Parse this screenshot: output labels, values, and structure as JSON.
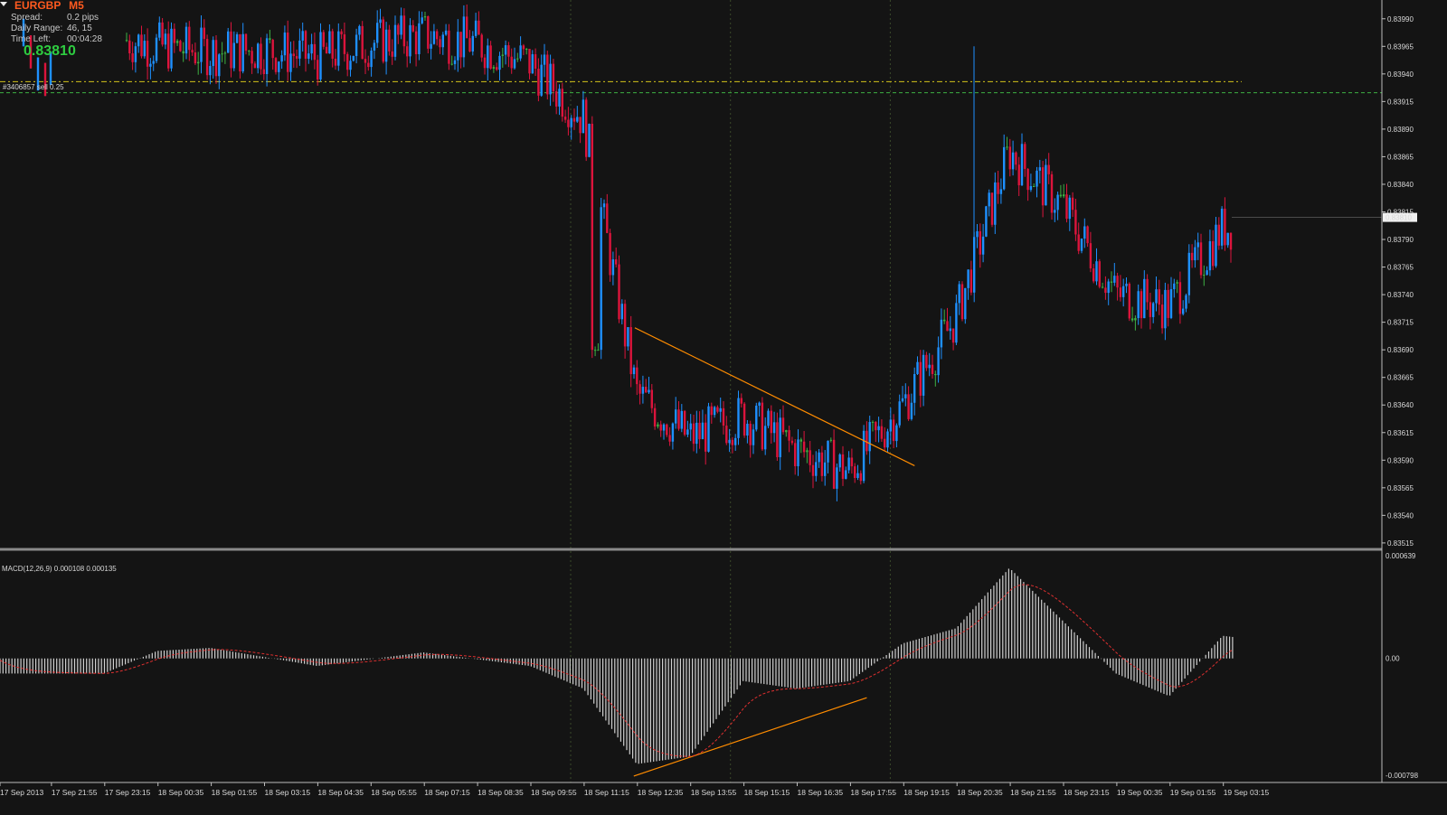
{
  "header": {
    "symbol": "EURGBP",
    "timeframe": "M5",
    "spread_label": "Spread:",
    "spread_value": "0.2 pips",
    "range_label": "Daily Range:",
    "range_value": "46, 15",
    "timeleft_label": "Time Left:",
    "timeleft_value": "00:04:28",
    "bid_price": "0.83810"
  },
  "order_line": {
    "label": "#3406857 sell 0.25"
  },
  "indicator": {
    "label": "MACD(12,26,9) 0.000108 0.000135"
  },
  "price_axis": {
    "ticks": [
      "0.83990",
      "0.83965",
      "0.83940",
      "0.83915",
      "0.83890",
      "0.83865",
      "0.83840",
      "0.83815",
      "0.83790",
      "0.83765",
      "0.83740",
      "0.83715",
      "0.83690",
      "0.83665",
      "0.83640",
      "0.83615",
      "0.83590",
      "0.83565",
      "0.83540",
      "0.83515"
    ],
    "current": "0.83810"
  },
  "macd_axis": {
    "ticks": [
      "0.000639",
      "0.00",
      "-0.000798"
    ]
  },
  "time_axis": {
    "labels": [
      "17 Sep 2013",
      "17 Sep 21:55",
      "17 Sep 23:15",
      "18 Sep 00:35",
      "18 Sep 01:55",
      "18 Sep 03:15",
      "18 Sep 04:35",
      "18 Sep 05:55",
      "18 Sep 07:15",
      "18 Sep 08:35",
      "18 Sep 09:55",
      "18 Sep 11:15",
      "18 Sep 12:35",
      "18 Sep 13:55",
      "18 Sep 15:15",
      "18 Sep 16:35",
      "18 Sep 17:55",
      "18 Sep 19:15",
      "18 Sep 20:35",
      "18 Sep 21:55",
      "18 Sep 23:15",
      "19 Sep 00:35",
      "19 Sep 01:55",
      "19 Sep 03:15"
    ]
  },
  "colors": {
    "background": "#141414",
    "bull": "#1e90ff",
    "bear": "#dc143c",
    "doji": "#3cb043",
    "trendline": "#ff8c00",
    "macd_hist": "#d0d0d0",
    "macd_signal": "#e03030",
    "level_yellow": "#d4c21a",
    "level_green": "#3cb043"
  },
  "chart_data": {
    "type": "candlestick",
    "instrument": "EURGBP",
    "timeframe": "M5",
    "close_path": [
      {
        "time": "17 Sep 21:55",
        "price": 0.83975
      },
      {
        "time": "17 Sep 23:15",
        "price": 0.83965
      },
      {
        "time": "18 Sep 00:35",
        "price": 0.8396
      },
      {
        "time": "18 Sep 01:55",
        "price": 0.83962
      },
      {
        "time": "18 Sep 03:15",
        "price": 0.83955
      },
      {
        "time": "18 Sep 04:35",
        "price": 0.83968
      },
      {
        "time": "18 Sep 05:55",
        "price": 0.83975
      },
      {
        "time": "18 Sep 07:15",
        "price": 0.83968
      },
      {
        "time": "18 Sep 08:35",
        "price": 0.8395
      },
      {
        "time": "18 Sep 09:55",
        "price": 0.839
      },
      {
        "time": "18 Sep 11:15",
        "price": 0.8365
      },
      {
        "time": "18 Sep 12:35",
        "price": 0.8361
      },
      {
        "time": "18 Sep 13:55",
        "price": 0.8363
      },
      {
        "time": "18 Sep 15:15",
        "price": 0.836
      },
      {
        "time": "18 Sep 16:35",
        "price": 0.8358
      },
      {
        "time": "18 Sep 17:55",
        "price": 0.8364
      },
      {
        "time": "18 Sep 19:15",
        "price": 0.8372
      },
      {
        "time": "18 Sep 20:35",
        "price": 0.8387
      },
      {
        "time": "18 Sep 21:55",
        "price": 0.8382
      },
      {
        "time": "18 Sep 23:15",
        "price": 0.8374
      },
      {
        "time": "19 Sep 00:35",
        "price": 0.8373
      },
      {
        "time": "19 Sep 01:55",
        "price": 0.838
      },
      {
        "time": "19 Sep 03:15",
        "price": 0.8381
      }
    ],
    "levels": [
      {
        "kind": "dash-dot",
        "color": "yellow",
        "price": 0.83933
      },
      {
        "kind": "dashed",
        "color": "green",
        "price": 0.83923
      }
    ],
    "trendlines": [
      {
        "pane": "price",
        "from": {
          "time": "18 Sep 11:15",
          "price": 0.8371
        },
        "to": {
          "time": "18 Sep 19:15",
          "price": 0.83585
        }
      },
      {
        "pane": "macd",
        "from": {
          "time": "18 Sep 12:35",
          "value": -0.00078
        },
        "to": {
          "time": "18 Sep 17:55",
          "value": -0.00026
        }
      }
    ],
    "macd": {
      "params": "12,26,9",
      "main": 0.000108,
      "signal": 0.000135,
      "range": [
        -0.000798,
        0.000639
      ],
      "path": [
        {
          "time": "17 Sep 21:55",
          "value": -0.0001
        },
        {
          "time": "17 Sep 23:15",
          "value": 5e-05
        },
        {
          "time": "18 Sep 00:35",
          "value": 7e-05
        },
        {
          "time": "18 Sep 03:15",
          "value": -5e-05
        },
        {
          "time": "18 Sep 05:55",
          "value": 4e-05
        },
        {
          "time": "18 Sep 08:35",
          "value": -5e-05
        },
        {
          "time": "18 Sep 09:55",
          "value": -0.0002
        },
        {
          "time": "18 Sep 11:15",
          "value": -0.0007
        },
        {
          "time": "18 Sep 12:35",
          "value": -0.00065
        },
        {
          "time": "18 Sep 13:55",
          "value": -0.00015
        },
        {
          "time": "18 Sep 15:15",
          "value": -0.0002
        },
        {
          "time": "18 Sep 16:35",
          "value": -0.00015
        },
        {
          "time": "18 Sep 17:55",
          "value": 0.0001
        },
        {
          "time": "18 Sep 19:15",
          "value": 0.0002
        },
        {
          "time": "18 Sep 20:35",
          "value": 0.0006
        },
        {
          "time": "18 Sep 21:55",
          "value": 0.00025
        },
        {
          "time": "18 Sep 23:15",
          "value": -0.0001
        },
        {
          "time": "19 Sep 00:35",
          "value": -0.00025
        },
        {
          "time": "19 Sep 01:55",
          "value": 0.00015
        },
        {
          "time": "19 Sep 03:15",
          "value": 0.00011
        }
      ]
    }
  }
}
